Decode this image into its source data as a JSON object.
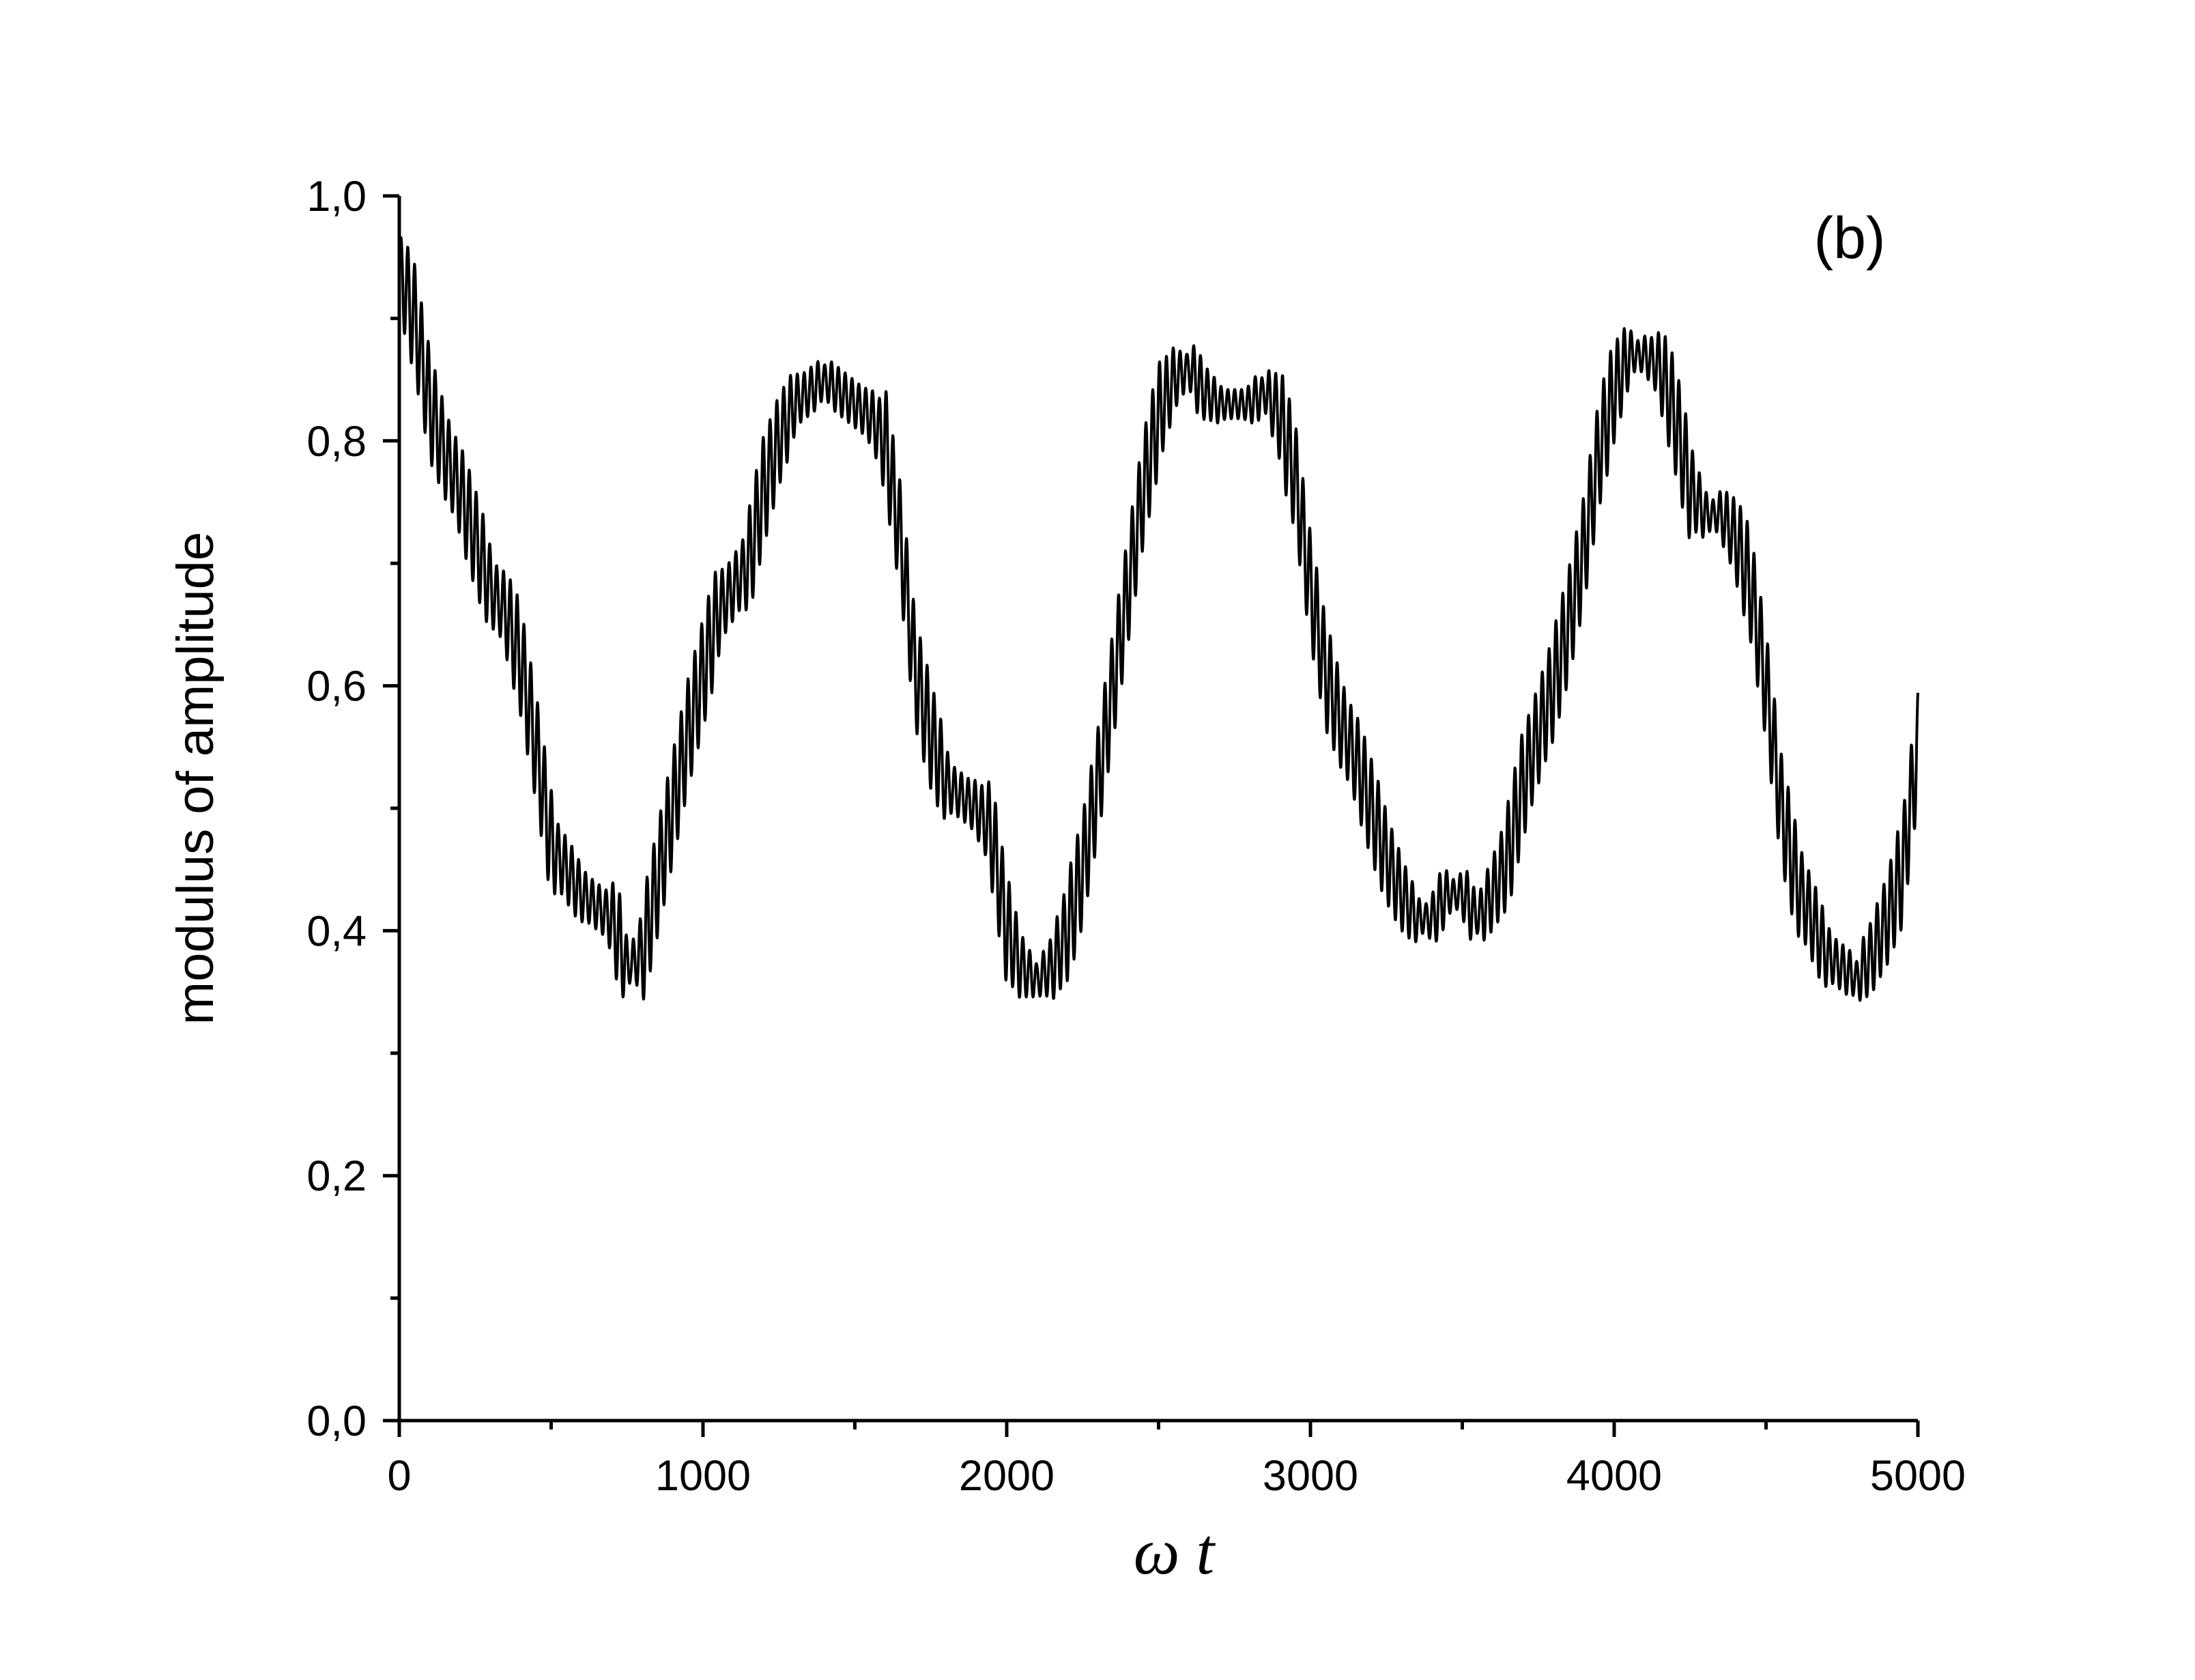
{
  "chart_data": {
    "type": "line",
    "title": "",
    "xlabel": "ω t",
    "ylabel": "modulus of amplitude",
    "panel_label": "(b)",
    "xlim": [
      0,
      5000
    ],
    "ylim": [
      0.0,
      1.0
    ],
    "x_ticks": [
      0,
      1000,
      2000,
      3000,
      4000,
      5000
    ],
    "x_tick_labels": [
      "0",
      "1000",
      "2000",
      "3000",
      "4000",
      "5000"
    ],
    "y_ticks": [
      0.0,
      0.2,
      0.4,
      0.6,
      0.8,
      1.0
    ],
    "y_tick_labels": [
      "0,0",
      "0,2",
      "0,4",
      "0,6",
      "0,8",
      "1,0"
    ],
    "grid": false,
    "legend": "none",
    "line_color": "#000000",
    "series": [
      {
        "x": [
          0,
          50,
          100,
          150,
          200,
          250,
          300,
          350,
          400,
          450,
          500,
          550,
          600,
          650,
          700,
          750,
          800,
          850,
          900,
          950,
          1000,
          1050,
          1100,
          1150,
          1200,
          1250,
          1300,
          1350,
          1400,
          1450,
          1500,
          1550,
          1600,
          1650,
          1700,
          1750,
          1800,
          1850,
          1900,
          1950,
          2000,
          2050,
          2100,
          2150,
          2200,
          2250,
          2300,
          2350,
          2400,
          2450,
          2500,
          2550,
          2600,
          2650,
          2700,
          2750,
          2800,
          2850,
          2900,
          2950,
          3000,
          3050,
          3100,
          3150,
          3200,
          3250,
          3300,
          3350,
          3400,
          3450,
          3500,
          3550,
          3600,
          3650,
          3700,
          3750,
          3800,
          3850,
          3900,
          3950,
          4000,
          4050,
          4100,
          4150,
          4200,
          4250,
          4300,
          4350,
          4400,
          4450,
          4500,
          4550,
          4600,
          4650,
          4700,
          4750,
          4800,
          4850,
          4900,
          4950,
          5000
        ],
        "y": [
          0.94,
          0.9,
          0.83,
          0.79,
          0.76,
          0.72,
          0.68,
          0.66,
          0.62,
          0.55,
          0.47,
          0.45,
          0.43,
          0.42,
          0.41,
          0.37,
          0.38,
          0.44,
          0.5,
          0.56,
          0.61,
          0.66,
          0.68,
          0.7,
          0.76,
          0.8,
          0.83,
          0.84,
          0.85,
          0.84,
          0.83,
          0.82,
          0.8,
          0.72,
          0.61,
          0.56,
          0.52,
          0.51,
          0.5,
          0.48,
          0.4,
          0.37,
          0.36,
          0.37,
          0.4,
          0.45,
          0.52,
          0.6,
          0.68,
          0.76,
          0.82,
          0.85,
          0.86,
          0.84,
          0.83,
          0.83,
          0.83,
          0.84,
          0.82,
          0.77,
          0.68,
          0.61,
          0.57,
          0.54,
          0.5,
          0.46,
          0.43,
          0.41,
          0.41,
          0.43,
          0.43,
          0.41,
          0.43,
          0.46,
          0.52,
          0.56,
          0.6,
          0.65,
          0.71,
          0.79,
          0.84,
          0.87,
          0.87,
          0.86,
          0.82,
          0.76,
          0.74,
          0.74,
          0.72,
          0.68,
          0.6,
          0.5,
          0.44,
          0.41,
          0.38,
          0.37,
          0.36,
          0.38,
          0.41,
          0.45,
          0.55
        ]
      }
    ]
  }
}
